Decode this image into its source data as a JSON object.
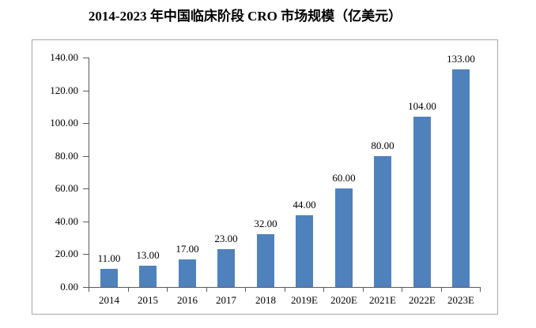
{
  "chart_data": {
    "type": "bar",
    "title": "2014-2023 年中国临床阶段 CRO 市场规模（亿美元）",
    "categories": [
      "2014",
      "2015",
      "2016",
      "2017",
      "2018",
      "2019E",
      "2020E",
      "2021E",
      "2022E",
      "2023E"
    ],
    "values": [
      11,
      13,
      17,
      23,
      32,
      44,
      60,
      80,
      104,
      133
    ],
    "value_labels": [
      "11.00",
      "13.00",
      "17.00",
      "23.00",
      "32.00",
      "44.00",
      "60.00",
      "80.00",
      "104.00",
      "133.00"
    ],
    "y_tick_values": [
      0,
      20,
      40,
      60,
      80,
      100,
      120,
      140
    ],
    "y_tick_labels": [
      "0.00",
      "20.00",
      "40.00",
      "60.00",
      "80.00",
      "100.00",
      "120.00",
      "140.00"
    ],
    "ylim": [
      0,
      140
    ],
    "xlabel": "",
    "ylabel": "",
    "grid": false,
    "legend_position": "none",
    "bar_color": "#4F81BD"
  },
  "colors": {
    "bar": "#4F81BD",
    "axis": "#595959",
    "frame_border": "#A6A6A6",
    "text": "#000000",
    "background": "#FFFFFF"
  }
}
